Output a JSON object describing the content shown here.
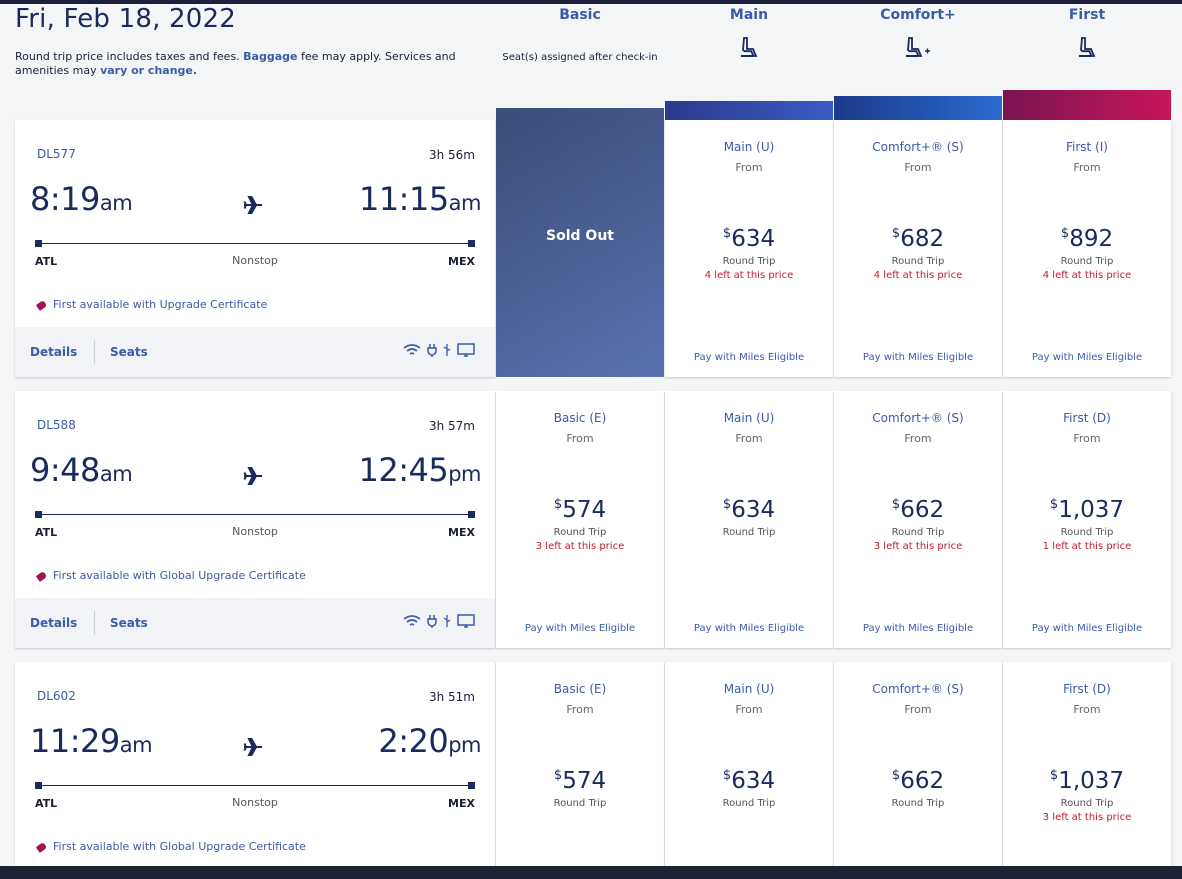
{
  "header": {
    "date": "Fri, Feb 18, 2022",
    "note_text": "Round trip price includes taxes and fees. ",
    "note_link1": "Baggage",
    "note_mid": "fee may apply. Services and amenities may",
    "note_link2": "vary or change."
  },
  "cabins": [
    {
      "name": "Basic",
      "sub": "Seat(s) assigned after check-in",
      "icon": "",
      "color": ""
    },
    {
      "name": "Main",
      "sub": "",
      "icon": "seat-icon",
      "color": "#2b3f9e"
    },
    {
      "name": "Comfort+",
      "sub": "",
      "icon": "seat-plus-icon",
      "color": "#1a4fa8"
    },
    {
      "name": "First",
      "sub": "",
      "icon": "seat-icon",
      "color": "#b0154e"
    }
  ],
  "flights": [
    {
      "flight_no": "DL577",
      "duration": "3h 56m",
      "depart_time": "8:19",
      "depart_ap": "am",
      "arrive_time": "11:15",
      "arrive_ap": "am",
      "from": "ATL",
      "to": "MEX",
      "stops": "Nonstop",
      "upgrade": "First available with Upgrade Certificate",
      "details": "Details",
      "seats": "Seats",
      "amenities": [
        "wifi-icon",
        "power-icon",
        "usb-icon",
        "screen-icon"
      ],
      "fares": [
        {
          "sold_out": "Sold Out"
        },
        {
          "cls": "Main (U)",
          "from": "From",
          "price": "634",
          "rt": "Round Trip",
          "left": "4 left at this price",
          "miles": "Pay with Miles Eligible"
        },
        {
          "cls": "Comfort+® (S)",
          "from": "From",
          "price": "682",
          "rt": "Round Trip",
          "left": "4 left at this price",
          "miles": "Pay with Miles Eligible"
        },
        {
          "cls": "First (I)",
          "from": "From",
          "price": "892",
          "rt": "Round Trip",
          "left": "4 left at this price",
          "miles": "Pay with Miles Eligible"
        }
      ]
    },
    {
      "flight_no": "DL588",
      "duration": "3h 57m",
      "depart_time": "9:48",
      "depart_ap": "am",
      "arrive_time": "12:45",
      "arrive_ap": "pm",
      "from": "ATL",
      "to": "MEX",
      "stops": "Nonstop",
      "upgrade": "First available with Global Upgrade Certificate",
      "details": "Details",
      "seats": "Seats",
      "amenities": [
        "wifi-icon",
        "power-icon",
        "usb-icon",
        "screen-icon"
      ],
      "fares": [
        {
          "cls": "Basic (E)",
          "from": "From",
          "price": "574",
          "rt": "Round Trip",
          "left": "3 left at this price",
          "miles": "Pay with Miles Eligible"
        },
        {
          "cls": "Main (U)",
          "from": "From",
          "price": "634",
          "rt": "Round Trip",
          "left": "",
          "miles": "Pay with Miles Eligible"
        },
        {
          "cls": "Comfort+® (S)",
          "from": "From",
          "price": "662",
          "rt": "Round Trip",
          "left": "3 left at this price",
          "miles": "Pay with Miles Eligible"
        },
        {
          "cls": "First (D)",
          "from": "From",
          "price": "1,037",
          "rt": "Round Trip",
          "left": "1 left at this price",
          "miles": "Pay with Miles Eligible"
        }
      ]
    },
    {
      "flight_no": "DL602",
      "duration": "3h 51m",
      "depart_time": "11:29",
      "depart_ap": "am",
      "arrive_time": "2:20",
      "arrive_ap": "pm",
      "from": "ATL",
      "to": "MEX",
      "stops": "Nonstop",
      "upgrade": "First available with Global Upgrade Certificate",
      "fares": [
        {
          "cls": "Basic (E)",
          "from": "From",
          "price": "574",
          "rt": "Round Trip",
          "left": ""
        },
        {
          "cls": "Main (U)",
          "from": "From",
          "price": "634",
          "rt": "Round Trip",
          "left": ""
        },
        {
          "cls": "Comfort+® (S)",
          "from": "From",
          "price": "662",
          "rt": "Round Trip",
          "left": ""
        },
        {
          "cls": "First (D)",
          "from": "From",
          "price": "1,037",
          "rt": "Round Trip",
          "left": "3 left at this price"
        }
      ]
    }
  ],
  "price_symbol": "$"
}
